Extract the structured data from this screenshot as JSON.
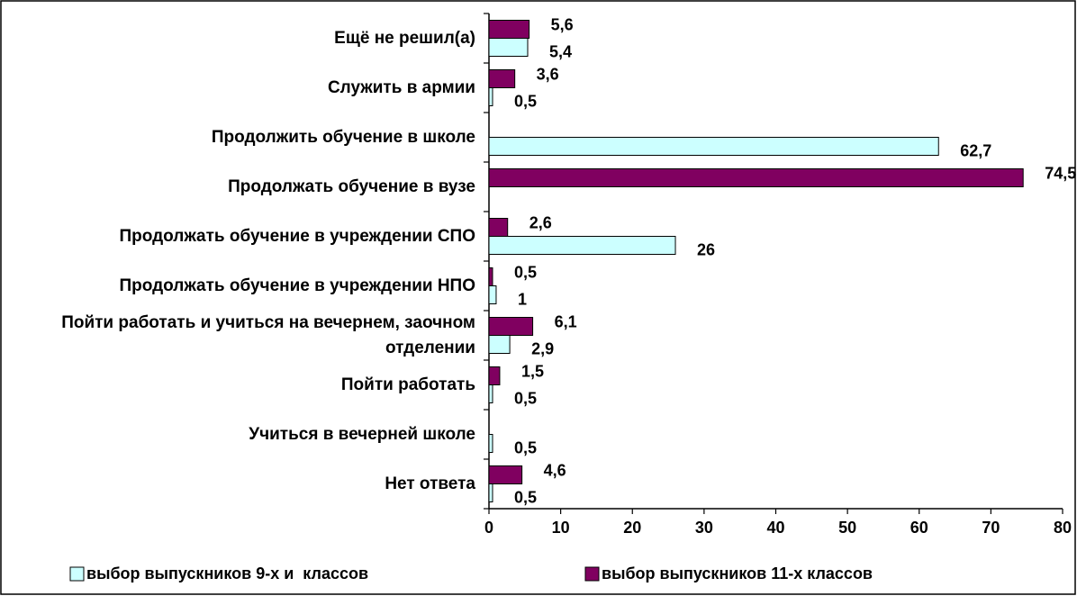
{
  "chart_data": {
    "type": "barh",
    "categories": [
      "Ещё не решил(а)",
      "Служить в армии",
      "Продолжить обучение в школе",
      "Продолжать обучение в вузе",
      "Продолжать обучение в учреждении СПО",
      "Продолжать обучение в учреждении НПО",
      "Пойти работать и учиться на вечернем, заочном отделении",
      "Пойти работать",
      "Учиться в вечерней школе",
      "Нет ответа"
    ],
    "series": [
      {
        "name": "выбор выпускников 9-х и  классов",
        "color": "#ccffff",
        "values": [
          5.4,
          0.5,
          62.7,
          null,
          26,
          1,
          2.9,
          0.5,
          0.5,
          0.5
        ],
        "value_labels": [
          "5,4",
          "0,5",
          "62,7",
          null,
          "26",
          "1",
          "2,9",
          "0,5",
          "0,5",
          "0,5"
        ]
      },
      {
        "name": "выбор выпускников 11-х классов",
        "color": "#800060",
        "values": [
          5.6,
          3.6,
          null,
          74.5,
          2.6,
          0.5,
          6.1,
          1.5,
          null,
          4.6
        ],
        "value_labels": [
          "5,6",
          "3,6",
          null,
          "74,5",
          "2,6",
          "0,5",
          "6,1",
          "1,5",
          null,
          "4,6"
        ]
      }
    ],
    "xlim": [
      0,
      80
    ],
    "xticks": [
      0,
      10,
      20,
      30,
      40,
      50,
      60,
      70,
      80
    ],
    "legend": "bottom"
  }
}
